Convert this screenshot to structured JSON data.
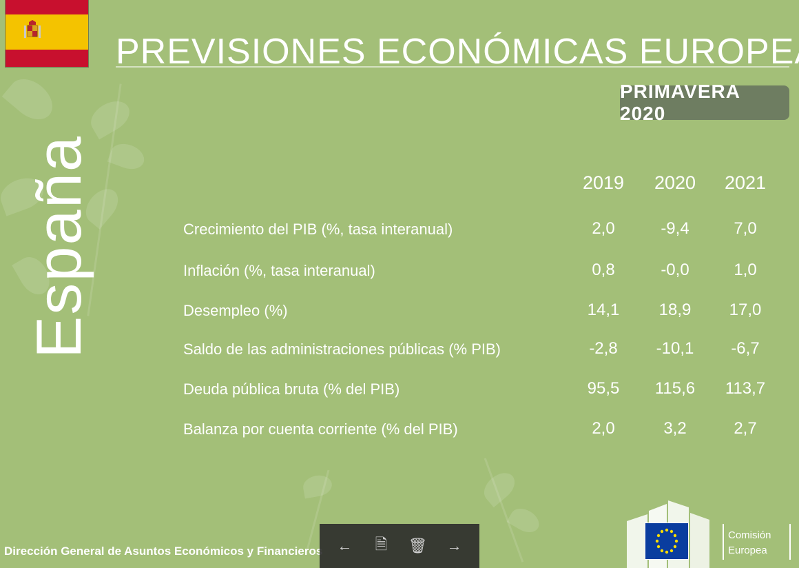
{
  "header": {
    "title": "PREVISIONES ECONÓMICAS EUROPEAS",
    "season": "PRIMAVERA 2020",
    "country": "España"
  },
  "table": {
    "years": [
      "2019",
      "2020",
      "2021"
    ],
    "rows": [
      {
        "label": "Crecimiento del PIB (%, tasa interanual)",
        "values": [
          "2,0",
          "-9,4",
          "7,0"
        ]
      },
      {
        "label": "Inflación (%, tasa interanual)",
        "values": [
          "0,8",
          "-0,0",
          "1,0"
        ]
      },
      {
        "label": "Desempleo (%)",
        "values": [
          "14,1",
          "18,9",
          "17,0"
        ]
      },
      {
        "label": "Saldo de las administraciones públicas (% PIB)",
        "values": [
          "-2,8",
          "-10,1",
          "-6,7"
        ]
      },
      {
        "label": "Deuda pública bruta (% del PIB)",
        "values": [
          "95,5",
          "115,6",
          "113,7"
        ]
      },
      {
        "label": "Balanza por cuenta corriente (% del PIB)",
        "values": [
          "2,0",
          "3,2",
          "2,7"
        ]
      }
    ]
  },
  "footer": {
    "directorate": "Dirección General de Asuntos Económicos y Financieros",
    "commission_line1": "Comisión",
    "commission_line2": "Europea"
  },
  "toolbar": {
    "prev": "←",
    "save": "🗎",
    "delete": "🗑",
    "next": "→"
  },
  "colors": {
    "background": "#a3bf78",
    "badge": "#6e7d61",
    "flag_red": "#c8102e",
    "flag_yellow": "#f4c300",
    "eu_blue": "#0a3d9f",
    "eu_star": "#ffdd00"
  }
}
